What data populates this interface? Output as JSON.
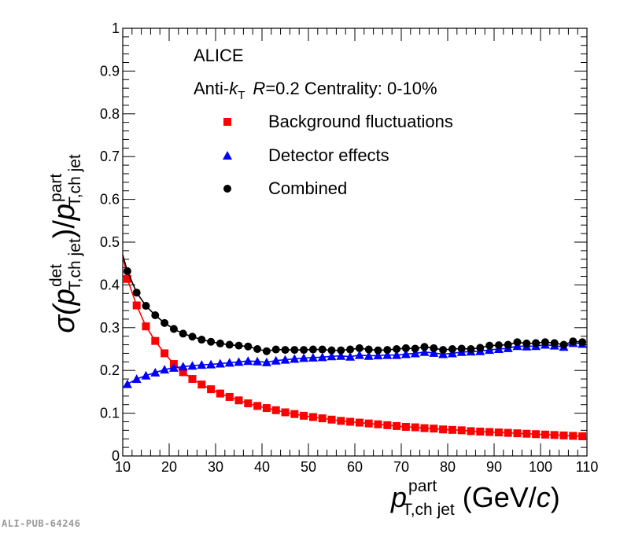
{
  "figure_id": "ALI-PUB-64246",
  "legend": {
    "header": "ALICE",
    "algorithm_prefix": "Anti-",
    "algorithm_k": "k",
    "algorithm_k_sub": "T",
    "radius_label": "R",
    "radius_value": "=0.2 Centrality: 0-10%"
  },
  "y_title": {
    "sigma": "σ(",
    "p1": "p",
    "p1_sup": "det",
    "p1_sub": "T,ch jet",
    "slash": ")/",
    "p2": "p",
    "p2_sup": "part",
    "p2_sub": "T,ch jet"
  },
  "x_title": {
    "p": "p",
    "sup": "part",
    "sub": "T,ch jet",
    "unit_open": "(GeV/",
    "unit_c": "c",
    "unit_close": ")"
  },
  "colors": {
    "background_fluctuations": "#ff0000",
    "detector_effects": "#0000ff",
    "combined": "#000000"
  },
  "chart_data": {
    "type": "scatter",
    "title": "",
    "xlabel": "p_T,ch jet^part (GeV/c)",
    "ylabel": "σ(p_T,ch jet^det)/p_T,ch jet^part",
    "xlim": [
      10,
      110
    ],
    "ylim": [
      0,
      1
    ],
    "x_ticks": [
      "10",
      "20",
      "30",
      "40",
      "50",
      "60",
      "70",
      "80",
      "90",
      "100",
      "110"
    ],
    "y_ticks": [
      "0",
      "0.1",
      "0.2",
      "0.3",
      "0.4",
      "0.5",
      "0.6",
      "0.7",
      "0.8",
      "0.9",
      "1"
    ],
    "x": [
      11,
      13,
      15,
      17,
      19,
      21,
      23,
      25,
      27,
      29,
      31,
      33,
      35,
      37,
      39,
      41,
      43,
      45,
      47,
      49,
      51,
      53,
      55,
      57,
      59,
      61,
      63,
      65,
      67,
      69,
      71,
      73,
      75,
      77,
      79,
      81,
      83,
      85,
      87,
      89,
      91,
      93,
      95,
      97,
      99,
      101,
      103,
      105,
      107,
      109
    ],
    "series": [
      {
        "name": "Background fluctuations",
        "marker": "square",
        "color": "#ff0000",
        "values": [
          0.414,
          0.352,
          0.303,
          0.269,
          0.24,
          0.215,
          0.196,
          0.18,
          0.167,
          0.156,
          0.146,
          0.138,
          0.13,
          0.123,
          0.117,
          0.112,
          0.107,
          0.102,
          0.098,
          0.094,
          0.091,
          0.088,
          0.085,
          0.082,
          0.08,
          0.078,
          0.076,
          0.074,
          0.072,
          0.07,
          0.068,
          0.067,
          0.065,
          0.064,
          0.062,
          0.061,
          0.06,
          0.058,
          0.057,
          0.056,
          0.055,
          0.054,
          0.053,
          0.052,
          0.051,
          0.05,
          0.049,
          0.048,
          0.047,
          0.046
        ]
      },
      {
        "name": "Detector effects",
        "marker": "triangle",
        "color": "#0000ff",
        "values": [
          0.168,
          0.18,
          0.188,
          0.195,
          0.202,
          0.206,
          0.209,
          0.211,
          0.213,
          0.214,
          0.216,
          0.218,
          0.22,
          0.222,
          0.221,
          0.219,
          0.223,
          0.225,
          0.227,
          0.229,
          0.23,
          0.231,
          0.233,
          0.234,
          0.232,
          0.236,
          0.234,
          0.235,
          0.236,
          0.236,
          0.238,
          0.24,
          0.243,
          0.241,
          0.238,
          0.24,
          0.243,
          0.244,
          0.245,
          0.248,
          0.25,
          0.252,
          0.257,
          0.256,
          0.257,
          0.26,
          0.258,
          0.255,
          0.264,
          0.262
        ]
      },
      {
        "name": "Combined",
        "marker": "circle",
        "color": "#000000",
        "values": [
          0.432,
          0.382,
          0.351,
          0.329,
          0.311,
          0.297,
          0.286,
          0.279,
          0.272,
          0.267,
          0.263,
          0.26,
          0.258,
          0.256,
          0.25,
          0.245,
          0.249,
          0.248,
          0.248,
          0.248,
          0.249,
          0.249,
          0.247,
          0.247,
          0.249,
          0.252,
          0.249,
          0.247,
          0.248,
          0.25,
          0.252,
          0.251,
          0.255,
          0.252,
          0.248,
          0.25,
          0.251,
          0.25,
          0.253,
          0.258,
          0.259,
          0.26,
          0.266,
          0.263,
          0.264,
          0.266,
          0.264,
          0.26,
          0.268,
          0.266
        ]
      }
    ]
  }
}
